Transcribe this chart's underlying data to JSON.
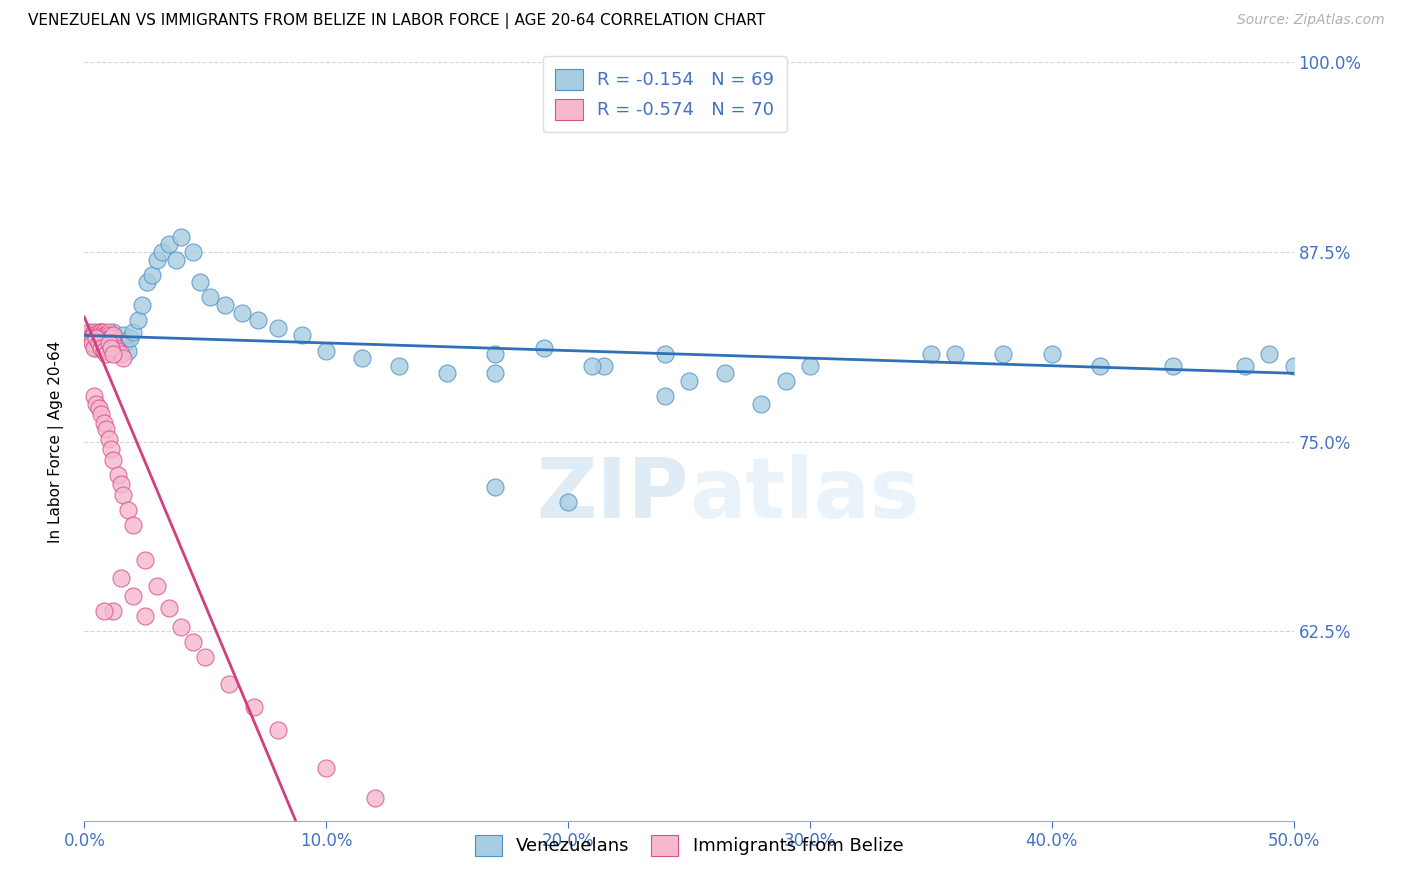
{
  "title": "VENEZUELAN VS IMMIGRANTS FROM BELIZE IN LABOR FORCE | AGE 20-64 CORRELATION CHART",
  "source": "Source: ZipAtlas.com",
  "ylabel": "In Labor Force | Age 20-64",
  "xlim": [
    0.0,
    0.5
  ],
  "ylim": [
    0.5,
    1.0
  ],
  "xticks": [
    0.0,
    0.1,
    0.2,
    0.3,
    0.4,
    0.5
  ],
  "xticklabels": [
    "0.0%",
    "10.0%",
    "20.0%",
    "30.0%",
    "40.0%",
    "50.0%"
  ],
  "yticks": [
    0.625,
    0.75,
    0.875,
    1.0
  ],
  "yticklabels": [
    "62.5%",
    "75.0%",
    "87.5%",
    "100.0%"
  ],
  "legend_blue_label": "Venezuelans",
  "legend_pink_label": "Immigrants from Belize",
  "blue_R": -0.154,
  "blue_N": 69,
  "pink_R": -0.574,
  "pink_N": 70,
  "blue_color": "#a8cce0",
  "blue_edge_color": "#5090c8",
  "pink_color": "#f5b8cc",
  "pink_edge_color": "#d85090",
  "blue_line_color": "#3070b8",
  "pink_line_color": "#d04080",
  "watermark_color": "#d4e8f5",
  "background_color": "#ffffff",
  "grid_color": "#cccccc",
  "title_fontsize": 11,
  "axis_label_fontsize": 11,
  "tick_fontsize": 12,
  "legend_fontsize": 13,
  "source_fontsize": 10,
  "blue_scatter_x": [
    0.002,
    0.003,
    0.004,
    0.005,
    0.006,
    0.006,
    0.007,
    0.007,
    0.008,
    0.008,
    0.009,
    0.01,
    0.01,
    0.011,
    0.011,
    0.012,
    0.012,
    0.013,
    0.014,
    0.015,
    0.016,
    0.017,
    0.018,
    0.019,
    0.02,
    0.022,
    0.024,
    0.026,
    0.028,
    0.03,
    0.032,
    0.035,
    0.038,
    0.04,
    0.045,
    0.048,
    0.052,
    0.058,
    0.065,
    0.072,
    0.08,
    0.09,
    0.1,
    0.115,
    0.13,
    0.15,
    0.17,
    0.19,
    0.215,
    0.24,
    0.265,
    0.29,
    0.17,
    0.2,
    0.24,
    0.28,
    0.35,
    0.38,
    0.42,
    0.45,
    0.48,
    0.5,
    0.49,
    0.36,
    0.4,
    0.17,
    0.21,
    0.25,
    0.3
  ],
  "blue_scatter_y": [
    0.818,
    0.82,
    0.815,
    0.812,
    0.818,
    0.82,
    0.815,
    0.822,
    0.818,
    0.81,
    0.815,
    0.82,
    0.812,
    0.818,
    0.81,
    0.815,
    0.822,
    0.818,
    0.812,
    0.815,
    0.82,
    0.815,
    0.81,
    0.818,
    0.822,
    0.83,
    0.84,
    0.855,
    0.86,
    0.87,
    0.875,
    0.88,
    0.87,
    0.885,
    0.875,
    0.855,
    0.845,
    0.84,
    0.835,
    0.83,
    0.825,
    0.82,
    0.81,
    0.805,
    0.8,
    0.795,
    0.808,
    0.812,
    0.8,
    0.808,
    0.795,
    0.79,
    0.72,
    0.71,
    0.78,
    0.775,
    0.808,
    0.808,
    0.8,
    0.8,
    0.8,
    0.8,
    0.808,
    0.808,
    0.808,
    0.795,
    0.8,
    0.79,
    0.8
  ],
  "pink_scatter_x": [
    0.001,
    0.002,
    0.003,
    0.003,
    0.004,
    0.004,
    0.005,
    0.005,
    0.006,
    0.006,
    0.006,
    0.007,
    0.007,
    0.007,
    0.008,
    0.008,
    0.008,
    0.009,
    0.009,
    0.01,
    0.01,
    0.01,
    0.011,
    0.011,
    0.012,
    0.012,
    0.013,
    0.014,
    0.015,
    0.016,
    0.003,
    0.004,
    0.005,
    0.006,
    0.007,
    0.008,
    0.009,
    0.01,
    0.011,
    0.012,
    0.004,
    0.005,
    0.006,
    0.007,
    0.008,
    0.009,
    0.01,
    0.011,
    0.012,
    0.014,
    0.015,
    0.016,
    0.018,
    0.02,
    0.025,
    0.03,
    0.035,
    0.04,
    0.045,
    0.05,
    0.06,
    0.07,
    0.08,
    0.1,
    0.12,
    0.015,
    0.02,
    0.025,
    0.012,
    0.008
  ],
  "pink_scatter_y": [
    0.82,
    0.822,
    0.82,
    0.818,
    0.822,
    0.82,
    0.818,
    0.815,
    0.822,
    0.82,
    0.818,
    0.822,
    0.82,
    0.818,
    0.822,
    0.82,
    0.815,
    0.82,
    0.815,
    0.822,
    0.82,
    0.818,
    0.815,
    0.818,
    0.82,
    0.815,
    0.812,
    0.81,
    0.808,
    0.805,
    0.815,
    0.812,
    0.818,
    0.815,
    0.812,
    0.81,
    0.808,
    0.815,
    0.812,
    0.808,
    0.78,
    0.775,
    0.772,
    0.768,
    0.762,
    0.758,
    0.752,
    0.745,
    0.738,
    0.728,
    0.722,
    0.715,
    0.705,
    0.695,
    0.672,
    0.655,
    0.64,
    0.628,
    0.618,
    0.608,
    0.59,
    0.575,
    0.56,
    0.535,
    0.515,
    0.66,
    0.648,
    0.635,
    0.638,
    0.638
  ]
}
